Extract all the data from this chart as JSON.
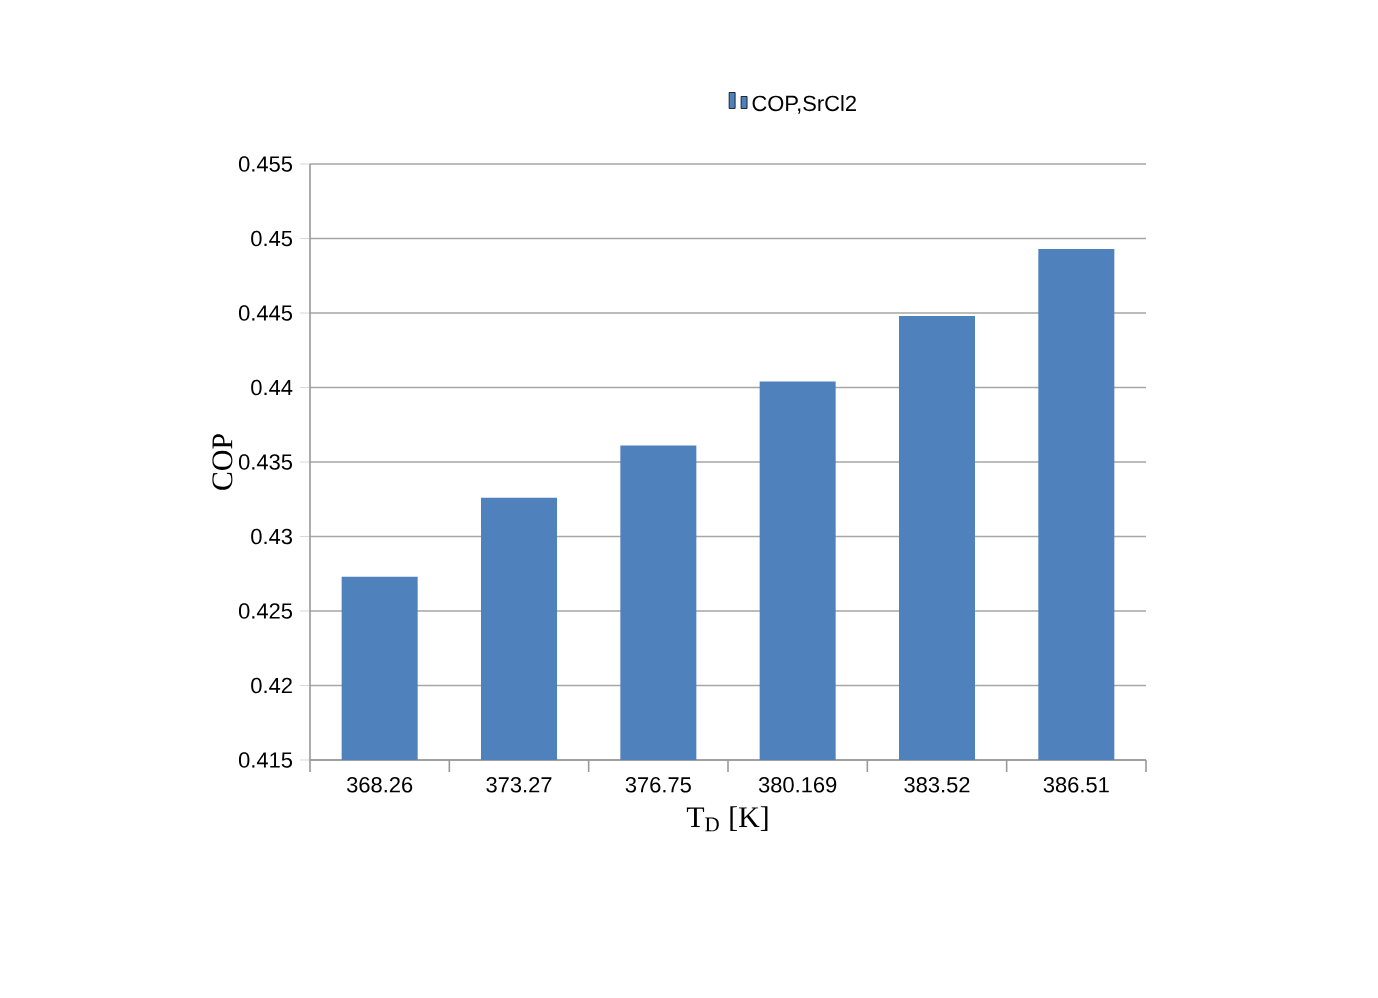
{
  "chart_data": {
    "type": "bar",
    "xlabel": "T$_{D}$ [K]",
    "ylabel": "COP",
    "categories": [
      "368.26",
      "373.27",
      "376.75",
      "380.169",
      "383.52",
      "386.51"
    ],
    "series": [
      {
        "name": "COP,SrCl2",
        "color": "#4f81bd",
        "values": [
          0.4273,
          0.4326,
          0.4361,
          0.4404,
          0.4448,
          0.4493
        ]
      }
    ],
    "ylim": [
      0.415,
      0.455
    ],
    "yticks": [
      0.415,
      0.42,
      0.425,
      0.43,
      0.435,
      0.44,
      0.445,
      0.45,
      0.455
    ],
    "grid": "y",
    "legend": "top"
  }
}
